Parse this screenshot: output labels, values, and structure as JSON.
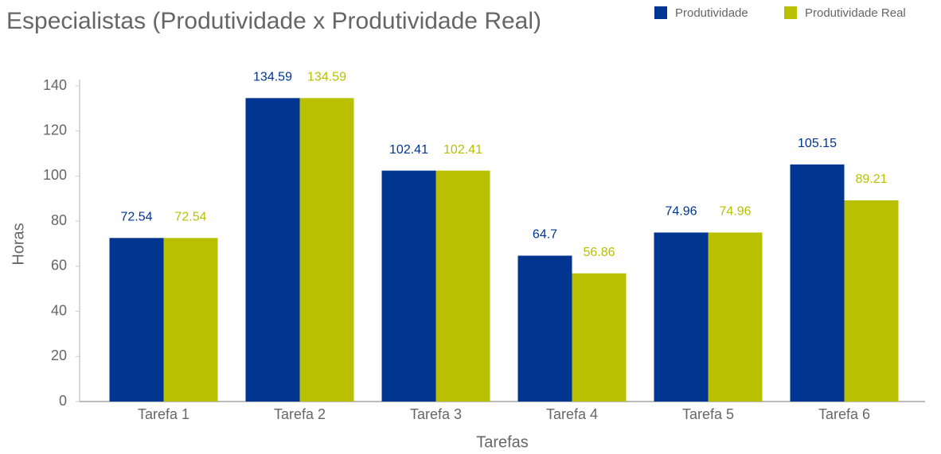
{
  "chart_data": {
    "type": "bar",
    "title": "Especialistas (Produtividade x Produtividade Real)",
    "xlabel": "Tarefas",
    "ylabel": "Horas",
    "categories": [
      "Tarefa 1",
      "Tarefa 2",
      "Tarefa 3",
      "Tarefa 4",
      "Tarefa 5",
      "Tarefa 6"
    ],
    "series": [
      {
        "name": "Produtividade",
        "color": "#003591",
        "values": [
          72.54,
          134.59,
          102.41,
          64.7,
          74.96,
          105.15
        ]
      },
      {
        "name": "Produtividade Real",
        "color": "#b8c000",
        "values": [
          72.54,
          134.59,
          102.41,
          56.86,
          74.96,
          89.21
        ]
      }
    ],
    "ylim": [
      0,
      140
    ],
    "yticks": [
      0,
      20,
      40,
      60,
      80,
      100,
      120,
      140
    ],
    "grid": false,
    "legend": "top-right"
  }
}
